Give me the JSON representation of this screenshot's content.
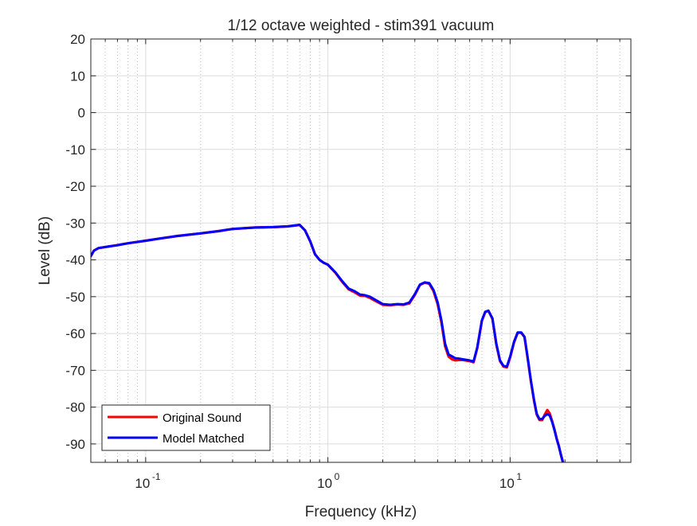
{
  "chart_data": {
    "type": "line",
    "title": "1/12 octave weighted - stim391 vacuum",
    "xlabel": "Frequency (kHz)",
    "ylabel": "Level (dB)",
    "xscale": "log",
    "xlim": [
      0.05,
      46
    ],
    "ylim": [
      -95,
      20
    ],
    "grid": true,
    "minor_grid": true,
    "legend_position": "bottom-left",
    "xticks": [
      {
        "value": 0.1,
        "base": "10",
        "exp": "-1"
      },
      {
        "value": 1,
        "base": "10",
        "exp": "0"
      },
      {
        "value": 10,
        "base": "10",
        "exp": "1"
      }
    ],
    "yticks": [
      20,
      10,
      0,
      -10,
      -20,
      -30,
      -40,
      -50,
      -60,
      -70,
      -80,
      -90
    ],
    "series": [
      {
        "name": "Original Sound",
        "color": "#ff0000",
        "x": [
          0.05,
          0.052,
          0.055,
          0.06,
          0.07,
          0.08,
          0.1,
          0.12,
          0.15,
          0.2,
          0.25,
          0.3,
          0.4,
          0.5,
          0.6,
          0.7,
          0.75,
          0.8,
          0.85,
          0.9,
          0.95,
          1.0,
          1.1,
          1.2,
          1.3,
          1.4,
          1.5,
          1.6,
          1.7,
          1.8,
          2.0,
          2.2,
          2.4,
          2.6,
          2.8,
          3.0,
          3.2,
          3.4,
          3.6,
          3.8,
          4.0,
          4.2,
          4.4,
          4.6,
          4.8,
          5.0,
          5.2,
          5.5,
          6.0,
          6.3,
          6.6,
          7.0,
          7.3,
          7.6,
          8.0,
          8.4,
          8.8,
          9.2,
          9.6,
          10.0,
          10.5,
          11.0,
          11.5,
          12.0,
          12.5,
          13.0,
          13.5,
          14.0,
          14.5,
          15.0,
          15.5,
          16.0,
          16.5,
          17.0,
          17.5,
          18.0,
          18.5,
          19.0,
          19.5
        ],
        "y": [
          -39,
          -37.5,
          -36.8,
          -36.5,
          -36,
          -35.5,
          -34.8,
          -34.2,
          -33.5,
          -32.8,
          -32.2,
          -31.6,
          -31.2,
          -31.1,
          -30.9,
          -30.5,
          -32,
          -35,
          -38.5,
          -40,
          -40.8,
          -41.3,
          -43.5,
          -46,
          -48,
          -48.8,
          -49.7,
          -49.8,
          -50.3,
          -51,
          -52.2,
          -52.3,
          -52.1,
          -52.2,
          -51.8,
          -49.5,
          -46.8,
          -46.2,
          -46.5,
          -48.5,
          -52,
          -57,
          -63.5,
          -66.3,
          -67,
          -67.3,
          -67.2,
          -67.2,
          -67.5,
          -67.8,
          -64,
          -56.5,
          -54.2,
          -53.8,
          -56,
          -63,
          -67.5,
          -69,
          -69.2,
          -66.5,
          -62.5,
          -59.8,
          -59.8,
          -61,
          -67,
          -73,
          -78,
          -82,
          -83.5,
          -83.5,
          -82,
          -80.8,
          -81.7,
          -83.8,
          -86,
          -88.5,
          -90.5,
          -93,
          -95
        ]
      },
      {
        "name": "Model Matched",
        "color": "#0000ff",
        "x": [
          0.05,
          0.052,
          0.055,
          0.06,
          0.07,
          0.08,
          0.1,
          0.12,
          0.15,
          0.2,
          0.25,
          0.3,
          0.4,
          0.5,
          0.6,
          0.7,
          0.75,
          0.8,
          0.85,
          0.9,
          0.95,
          1.0,
          1.1,
          1.2,
          1.3,
          1.4,
          1.5,
          1.6,
          1.7,
          1.8,
          2.0,
          2.2,
          2.4,
          2.6,
          2.8,
          3.0,
          3.2,
          3.4,
          3.6,
          3.8,
          4.0,
          4.2,
          4.4,
          4.6,
          4.8,
          5.0,
          5.2,
          5.5,
          6.0,
          6.3,
          6.6,
          7.0,
          7.3,
          7.6,
          8.0,
          8.4,
          8.8,
          9.2,
          9.6,
          10.0,
          10.5,
          11.0,
          11.5,
          12.0,
          12.5,
          13.0,
          13.5,
          14.0,
          14.5,
          15.0,
          15.5,
          16.0,
          16.5,
          17.0,
          17.5,
          18.0,
          18.5,
          19.0,
          19.5
        ],
        "y": [
          -39,
          -37.5,
          -36.8,
          -36.5,
          -36,
          -35.5,
          -34.8,
          -34.2,
          -33.5,
          -32.8,
          -32.2,
          -31.6,
          -31.2,
          -31.1,
          -30.9,
          -30.5,
          -32,
          -35,
          -38.5,
          -40,
          -40.8,
          -41.3,
          -43.4,
          -45.8,
          -47.8,
          -48.5,
          -49.4,
          -49.6,
          -50,
          -50.7,
          -52,
          -52.2,
          -52,
          -52.1,
          -51.6,
          -49.3,
          -46.7,
          -46.1,
          -46.3,
          -48.2,
          -51.5,
          -56.5,
          -62.8,
          -65.7,
          -66.2,
          -66.7,
          -66.8,
          -67,
          -67.3,
          -67.6,
          -63.8,
          -56.4,
          -54.1,
          -53.8,
          -55.9,
          -62.8,
          -67.3,
          -68.8,
          -69,
          -66.3,
          -62.3,
          -59.7,
          -59.7,
          -60.9,
          -66.8,
          -72.8,
          -77.8,
          -81.8,
          -83.3,
          -83.2,
          -82.4,
          -81.9,
          -82.3,
          -84,
          -86.2,
          -88.6,
          -90.6,
          -93,
          -95
        ]
      }
    ]
  }
}
